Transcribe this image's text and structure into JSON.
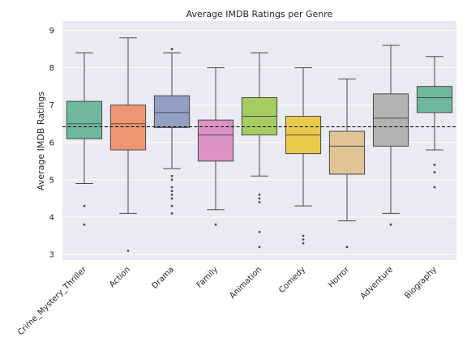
{
  "chart_data": {
    "type": "box",
    "title": "Average IMDB Ratings per Genre",
    "xlabel": "",
    "ylabel": "Average IMDB Ratings",
    "ylim": [
      2.85,
      9.25
    ],
    "yticks": [
      "3",
      "4",
      "5",
      "6",
      "7",
      "8",
      "9"
    ],
    "grid": true,
    "reference_line": {
      "y": 6.42,
      "style": "dashed",
      "color": "#000000"
    },
    "colors": {
      "background": "#eaeaf2",
      "grid": "#ffffff",
      "whisker": "#4a4a4a",
      "median": "#4a4a4a",
      "flier": "#4a4a4a"
    },
    "categories": [
      "Crime_Mystery_Thriller",
      "Action",
      "Drama",
      "Family",
      "Animation",
      "Comedy",
      "Horror",
      "Adventure",
      "Biography"
    ],
    "boxes": [
      {
        "category": "Crime_Mystery_Thriller",
        "color": "#6fb89e",
        "whislo": 4.9,
        "q1": 6.1,
        "med": 6.5,
        "q3": 7.1,
        "whishi": 8.4,
        "fliers": [
          3.8,
          4.3
        ]
      },
      {
        "category": "Action",
        "color": "#ee9671",
        "whislo": 4.1,
        "q1": 5.8,
        "med": 6.5,
        "q3": 7.0,
        "whishi": 8.8,
        "fliers": [
          3.1
        ]
      },
      {
        "category": "Drama",
        "color": "#93a0c5",
        "whislo": 5.3,
        "q1": 6.4,
        "med": 6.8,
        "q3": 7.25,
        "whishi": 8.4,
        "fliers": [
          4.1,
          4.3,
          4.5,
          4.6,
          4.7,
          4.8,
          5.0,
          5.1,
          8.5
        ]
      },
      {
        "category": "Family",
        "color": "#db93c3",
        "whislo": 4.2,
        "q1": 5.5,
        "med": 6.2,
        "q3": 6.6,
        "whishi": 8.0,
        "fliers": [
          3.8
        ]
      },
      {
        "category": "Animation",
        "color": "#a5cd61",
        "whislo": 5.1,
        "q1": 6.2,
        "med": 6.7,
        "q3": 7.2,
        "whishi": 8.4,
        "fliers": [
          3.2,
          3.6,
          4.4,
          4.5,
          4.6
        ]
      },
      {
        "category": "Comedy",
        "color": "#e8cb4a",
        "whislo": 4.3,
        "q1": 5.7,
        "med": 6.2,
        "q3": 6.7,
        "whishi": 8.0,
        "fliers": [
          3.3,
          3.4,
          3.5
        ]
      },
      {
        "category": "Horror",
        "color": "#e0c496",
        "whislo": 3.9,
        "q1": 5.15,
        "med": 5.9,
        "q3": 6.3,
        "whishi": 7.7,
        "fliers": [
          3.2
        ]
      },
      {
        "category": "Adventure",
        "color": "#b3b3b3",
        "whislo": 4.1,
        "q1": 5.9,
        "med": 6.65,
        "q3": 7.3,
        "whishi": 8.6,
        "fliers": [
          3.8
        ]
      },
      {
        "category": "Biography",
        "color": "#6fb89e",
        "whislo": 5.8,
        "q1": 6.8,
        "med": 7.2,
        "q3": 7.5,
        "whishi": 8.3,
        "fliers": [
          4.8,
          5.2,
          5.4
        ]
      }
    ]
  }
}
